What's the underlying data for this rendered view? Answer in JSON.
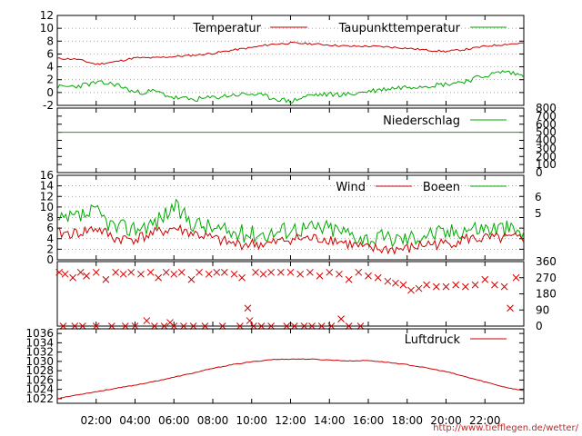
{
  "chart_data": [
    {
      "type": "line",
      "title": "",
      "xlabel": "",
      "ylabel": "",
      "ylim": [
        -2,
        12
      ],
      "yticks": [
        "-2",
        "0",
        "2",
        "4",
        "6",
        "8",
        "10",
        "12"
      ],
      "grid": true,
      "legend_placement": "top-right",
      "x_hours": [
        0,
        1,
        2,
        3,
        4,
        5,
        6,
        7,
        8,
        9,
        10,
        11,
        12,
        13,
        14,
        15,
        16,
        17,
        18,
        19,
        20,
        21,
        22,
        23,
        24
      ],
      "series": [
        {
          "name": "Temperatur",
          "color": "#cc0000",
          "values": [
            5.3,
            5.2,
            4.4,
            4.8,
            5.4,
            5.4,
            5.6,
            5.8,
            6.1,
            6.6,
            7.0,
            7.5,
            7.7,
            7.6,
            7.4,
            7.2,
            7.2,
            7.1,
            6.9,
            6.6,
            6.4,
            6.7,
            7.2,
            7.5,
            7.7
          ]
        },
        {
          "name": "Taupunkttemperatur",
          "color": "#00aa00",
          "values": [
            0.8,
            1.0,
            1.5,
            1.3,
            0.0,
            0.2,
            -0.8,
            -1.1,
            -0.8,
            -0.4,
            -0.2,
            -0.8,
            -1.4,
            -0.4,
            -0.3,
            -0.3,
            0.2,
            0.6,
            0.9,
            1.1,
            1.3,
            1.8,
            2.6,
            3.3,
            2.6
          ]
        }
      ]
    },
    {
      "type": "line",
      "title": "",
      "ylim": [
        0,
        800
      ],
      "yticks": [
        "0",
        "100",
        "200",
        "300",
        "400",
        "500",
        "600",
        "700",
        "800"
      ],
      "legend_placement": "top-right",
      "series": [
        {
          "name": "Niederschlag",
          "color": "#00aa00",
          "values": [
            500,
            500
          ]
        }
      ]
    },
    {
      "type": "line",
      "title": "",
      "ylim": [
        0,
        16
      ],
      "yticks": [
        "0",
        "2",
        "4",
        "6",
        "8",
        "10",
        "12",
        "14",
        "16"
      ],
      "right_ticks": [
        "6",
        "5"
      ],
      "grid": true,
      "legend_placement": "top-right",
      "x_hours": [
        0,
        1,
        2,
        3,
        4,
        5,
        6,
        7,
        8,
        9,
        10,
        11,
        12,
        13,
        14,
        15,
        16,
        17,
        18,
        19,
        20,
        21,
        22,
        23,
        24
      ],
      "series": [
        {
          "name": "Wind",
          "color": "#cc0000",
          "values": [
            5,
            5,
            6,
            4,
            4,
            5,
            6,
            5,
            4,
            3,
            3,
            3,
            4,
            4,
            4,
            3,
            2,
            2,
            2,
            3,
            3,
            4,
            4,
            4,
            4
          ]
        },
        {
          "name": "Boeen",
          "color": "#00aa00",
          "values": [
            7,
            8,
            9,
            6,
            6,
            7,
            10,
            7,
            6,
            5,
            5,
            5,
            6,
            6,
            6,
            5,
            4,
            4,
            4,
            5,
            5,
            6,
            6,
            6,
            5
          ]
        }
      ]
    },
    {
      "type": "scatter",
      "title": "",
      "ylim": [
        0,
        360
      ],
      "right_ticks": [
        "360",
        "270",
        "180",
        "90",
        "0"
      ],
      "marker": "x",
      "color": "#cc0000",
      "points": [
        [
          0.1,
          300
        ],
        [
          0.4,
          290
        ],
        [
          0.8,
          270
        ],
        [
          1.2,
          300
        ],
        [
          1.5,
          280
        ],
        [
          2.0,
          300
        ],
        [
          2.5,
          260
        ],
        [
          3.0,
          300
        ],
        [
          3.4,
          290
        ],
        [
          3.8,
          300
        ],
        [
          4.3,
          290
        ],
        [
          4.8,
          300
        ],
        [
          5.2,
          270
        ],
        [
          5.6,
          300
        ],
        [
          6.0,
          290
        ],
        [
          6.4,
          300
        ],
        [
          6.9,
          260
        ],
        [
          7.3,
          300
        ],
        [
          7.8,
          290
        ],
        [
          8.2,
          300
        ],
        [
          8.6,
          300
        ],
        [
          9.1,
          290
        ],
        [
          9.5,
          270
        ],
        [
          9.8,
          100
        ],
        [
          10.2,
          300
        ],
        [
          10.6,
          290
        ],
        [
          11.0,
          300
        ],
        [
          11.5,
          300
        ],
        [
          12.0,
          300
        ],
        [
          12.5,
          290
        ],
        [
          13.0,
          300
        ],
        [
          13.5,
          280
        ],
        [
          14.0,
          300
        ],
        [
          14.5,
          290
        ],
        [
          15.0,
          260
        ],
        [
          15.5,
          300
        ],
        [
          16.0,
          280
        ],
        [
          16.5,
          270
        ],
        [
          17.0,
          250
        ],
        [
          17.4,
          240
        ],
        [
          17.8,
          230
        ],
        [
          18.2,
          200
        ],
        [
          18.6,
          210
        ],
        [
          19.0,
          230
        ],
        [
          19.5,
          220
        ],
        [
          20.0,
          220
        ],
        [
          20.5,
          230
        ],
        [
          21.0,
          220
        ],
        [
          21.5,
          230
        ],
        [
          22.0,
          260
        ],
        [
          22.5,
          230
        ],
        [
          23.0,
          220
        ],
        [
          23.3,
          100
        ],
        [
          23.6,
          270
        ],
        [
          0.3,
          0
        ],
        [
          0.9,
          0
        ],
        [
          1.3,
          0
        ],
        [
          2.0,
          0
        ],
        [
          2.8,
          0
        ],
        [
          3.5,
          0
        ],
        [
          4.0,
          0
        ],
        [
          4.6,
          30
        ],
        [
          5.0,
          0
        ],
        [
          5.5,
          0
        ],
        [
          5.8,
          20
        ],
        [
          6.0,
          0
        ],
        [
          6.5,
          0
        ],
        [
          7.0,
          0
        ],
        [
          7.6,
          0
        ],
        [
          8.5,
          0
        ],
        [
          9.4,
          0
        ],
        [
          9.9,
          30
        ],
        [
          10.1,
          0
        ],
        [
          10.5,
          0
        ],
        [
          11.0,
          0
        ],
        [
          11.8,
          0
        ],
        [
          12.2,
          0
        ],
        [
          12.7,
          0
        ],
        [
          13.1,
          0
        ],
        [
          13.6,
          0
        ],
        [
          14.1,
          0
        ],
        [
          14.6,
          40
        ],
        [
          15.0,
          0
        ],
        [
          15.6,
          0
        ]
      ]
    },
    {
      "type": "line",
      "title": "",
      "ylim": [
        1021,
        1037
      ],
      "yticks": [
        "1022",
        "1024",
        "1026",
        "1028",
        "1030",
        "1032",
        "1034",
        "1036"
      ],
      "xticks": [
        "02:00",
        "04:00",
        "06:00",
        "08:00",
        "10:00",
        "12:00",
        "14:00",
        "16:00",
        "18:00",
        "20:00",
        "22:00"
      ],
      "legend_placement": "top-right",
      "x_hours": [
        0,
        1,
        2,
        3,
        4,
        5,
        6,
        7,
        8,
        9,
        10,
        11,
        12,
        13,
        14,
        15,
        16,
        17,
        18,
        19,
        20,
        21,
        22,
        23,
        24
      ],
      "series": [
        {
          "name": "Luftdruck",
          "color": "#cc0000",
          "values": [
            1022.0,
            1022.8,
            1023.5,
            1024.2,
            1024.9,
            1025.7,
            1026.6,
            1027.5,
            1028.5,
            1029.3,
            1029.9,
            1030.4,
            1030.5,
            1030.5,
            1030.3,
            1030.1,
            1030.2,
            1029.8,
            1029.3,
            1028.6,
            1027.8,
            1026.7,
            1025.6,
            1024.5,
            1023.7
          ]
        }
      ]
    }
  ],
  "footer": {
    "url": "http://www.tiefflegen.de/wetter/"
  }
}
